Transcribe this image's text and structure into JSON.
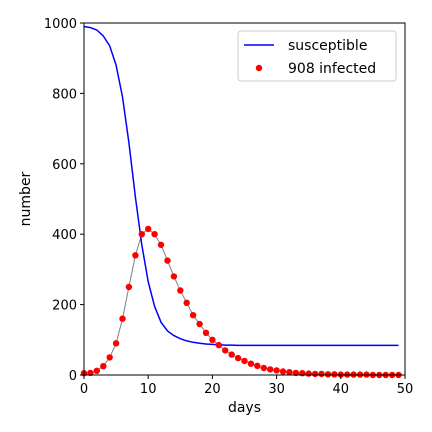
{
  "chart_data": {
    "type": "line",
    "xlabel": "days",
    "ylabel": "number",
    "xlim": [
      0,
      50
    ],
    "ylim": [
      0,
      1000
    ],
    "xticks": [
      0,
      10,
      20,
      30,
      40,
      50
    ],
    "yticks": [
      0,
      200,
      400,
      600,
      800,
      1000
    ],
    "grid": false,
    "legend_position": "top-right",
    "series": [
      {
        "name": "susceptible",
        "style": "line",
        "color": "#0000ff",
        "x": [
          0,
          1,
          2,
          3,
          4,
          5,
          6,
          7,
          8,
          9,
          10,
          11,
          12,
          13,
          14,
          15,
          16,
          17,
          18,
          19,
          20,
          21,
          22,
          23,
          24,
          25,
          26,
          27,
          28,
          29,
          30,
          31,
          32,
          33,
          34,
          35,
          36,
          37,
          38,
          39,
          40,
          41,
          42,
          43,
          44,
          45,
          46,
          47,
          48,
          49
        ],
        "y": [
          990,
          987,
          980,
          963,
          935,
          880,
          790,
          660,
          505,
          370,
          265,
          195,
          150,
          125,
          112,
          103,
          97,
          93,
          90,
          88,
          87,
          86,
          85,
          85,
          84,
          84,
          84,
          84,
          84,
          84,
          84,
          84,
          84,
          84,
          84,
          84,
          84,
          84,
          84,
          84,
          84,
          84,
          84,
          84,
          84,
          84,
          84,
          84,
          84,
          84
        ]
      },
      {
        "name": "908 infected",
        "style": "scatter",
        "color": "#ff0000",
        "line_color": "#808080",
        "x": [
          0,
          1,
          2,
          3,
          4,
          5,
          6,
          7,
          8,
          9,
          10,
          11,
          12,
          13,
          14,
          15,
          16,
          17,
          18,
          19,
          20,
          21,
          22,
          23,
          24,
          25,
          26,
          27,
          28,
          29,
          30,
          31,
          32,
          33,
          34,
          35,
          36,
          37,
          38,
          39,
          40,
          41,
          42,
          43,
          44,
          45,
          46,
          47,
          48,
          49
        ],
        "y": [
          5,
          6,
          12,
          25,
          50,
          90,
          160,
          250,
          340,
          400,
          415,
          400,
          370,
          325,
          280,
          240,
          205,
          170,
          145,
          120,
          100,
          85,
          70,
          58,
          48,
          40,
          32,
          26,
          20,
          16,
          13,
          10,
          8,
          6,
          5,
          4,
          3,
          3,
          2,
          2,
          1,
          1,
          1,
          1,
          1,
          0,
          0,
          0,
          0,
          0
        ]
      }
    ]
  }
}
